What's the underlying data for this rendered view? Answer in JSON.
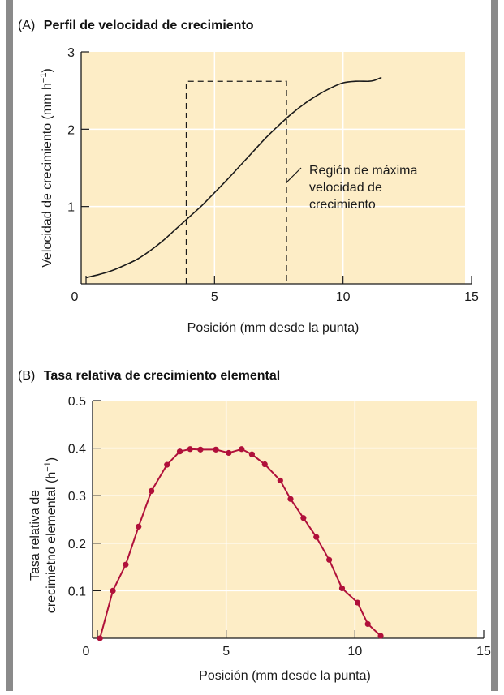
{
  "chart_data": [
    {
      "type": "line",
      "panel": "(A)",
      "title": "Perfil de velocidad de crecimiento",
      "xlabel": "Posición (mm desde la punta)",
      "ylabel": "Velocidad de crecimiento (mm h",
      "ylabel_sup": "−1",
      "ylabel_close": ")",
      "xlim": [
        0,
        15
      ],
      "ylim": [
        0,
        3
      ],
      "xticks": [
        0,
        5,
        10,
        15
      ],
      "yticks": [
        1,
        2,
        3
      ],
      "x_tick_labels": [
        "0",
        "5",
        "10",
        "15"
      ],
      "y_tick_labels": [
        "1",
        "2",
        "3"
      ],
      "grid": true,
      "series": [
        {
          "x": [
            0,
            0.5,
            1,
            1.5,
            2,
            2.5,
            3,
            3.5,
            4,
            4.5,
            5,
            5.5,
            6,
            6.5,
            7,
            7.5,
            8,
            8.5,
            9,
            9.5,
            10,
            10.5,
            11,
            11.2,
            11.5
          ],
          "y": [
            0.08,
            0.12,
            0.17,
            0.24,
            0.32,
            0.43,
            0.56,
            0.71,
            0.86,
            1.01,
            1.18,
            1.35,
            1.53,
            1.71,
            1.89,
            2.05,
            2.2,
            2.33,
            2.44,
            2.53,
            2.6,
            2.62,
            2.62,
            2.63,
            2.67
          ]
        }
      ],
      "annotation": {
        "region": {
          "x0": 3.9,
          "x1": 7.8,
          "y_top": 2.62
        },
        "lines": [
          "Región de máxima",
          "velocidad de",
          "crecimiento"
        ]
      }
    },
    {
      "type": "line",
      "panel": "(B)",
      "title": "Tasa relativa de crecimiento elemental",
      "xlabel": "Posición (mm desde la punta)",
      "ylabel_line1": "Tasa relativa de",
      "ylabel_line2": "crecimietno elemental (h",
      "ylabel_sup": "−1",
      "ylabel_close": ")",
      "xlim": [
        0,
        15
      ],
      "ylim": [
        0,
        0.5
      ],
      "xticks": [
        0,
        5,
        10,
        15
      ],
      "yticks": [
        0.1,
        0.2,
        0.3,
        0.4,
        0.5
      ],
      "x_tick_labels": [
        "0",
        "5",
        "10",
        "15"
      ],
      "y_tick_labels": [
        "0.1",
        "0.2",
        "0.3",
        "0.4",
        "0.5"
      ],
      "grid": true,
      "color": "#b0103a",
      "series": [
        {
          "x": [
            0.1,
            0.6,
            1.1,
            1.6,
            2.1,
            2.7,
            3.2,
            3.6,
            4.0,
            4.6,
            5.1,
            5.6,
            6.0,
            6.5,
            7.1,
            7.5,
            8.0,
            8.5,
            9.0,
            9.5,
            10.1,
            10.5,
            11.0
          ],
          "y": [
            0.0,
            0.1,
            0.155,
            0.235,
            0.31,
            0.365,
            0.393,
            0.398,
            0.397,
            0.397,
            0.39,
            0.398,
            0.387,
            0.366,
            0.332,
            0.293,
            0.253,
            0.213,
            0.165,
            0.105,
            0.075,
            0.03,
            0.005
          ]
        }
      ]
    }
  ]
}
